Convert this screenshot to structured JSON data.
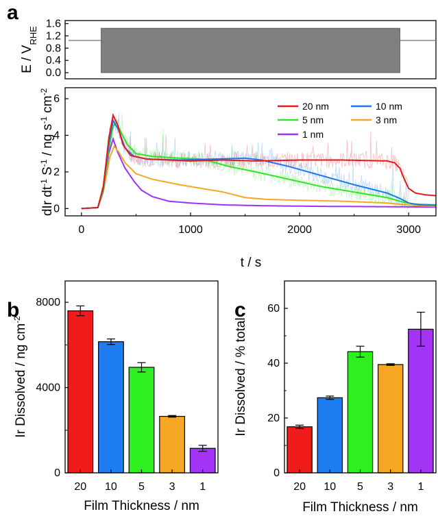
{
  "panels": {
    "a": "a",
    "b": "b",
    "c": "c"
  },
  "chart_data": [
    {
      "id": "a-top",
      "type": "area",
      "ylabel": "E / V",
      "ylabel_sub": "RHE",
      "ylim": [
        -0.2,
        1.7
      ],
      "yticks": [
        0.0,
        0.4,
        0.8,
        1.2,
        1.6
      ],
      "ytick_labels": [
        "0.0",
        "0.4",
        "0.8",
        "1.2",
        "1.6"
      ],
      "xlim": [
        -150,
        3250
      ],
      "baseline_potential": 1.05,
      "cycling_window": {
        "start": 180,
        "end": 2920,
        "low": 0.0,
        "high": 1.45
      },
      "colors": {
        "trace": "#7f7f7f",
        "block": "#7f7f7f"
      }
    },
    {
      "id": "a-bottom",
      "type": "line",
      "xlabel": "t / s",
      "ylabel": "dIr dt⁻¹ S⁻¹ / ng s⁻¹ cm⁻²",
      "xlim": [
        -150,
        3250
      ],
      "ylim": [
        -0.4,
        6.6
      ],
      "xticks": [
        0,
        1000,
        2000,
        3000
      ],
      "xtick_labels": [
        "0",
        "1000",
        "2000",
        "3000"
      ],
      "yticks": [
        0,
        2,
        4,
        6
      ],
      "ytick_labels": [
        "0",
        "2",
        "4",
        "6"
      ],
      "legend": "top-right",
      "series": [
        {
          "name": "20 nm",
          "color": "#e31a1c",
          "noise": true,
          "points": [
            [
              0,
              0
            ],
            [
              150,
              0.05
            ],
            [
              200,
              1.2
            ],
            [
              250,
              3.8
            ],
            [
              290,
              5.1
            ],
            [
              330,
              4.6
            ],
            [
              380,
              3.5
            ],
            [
              450,
              2.9
            ],
            [
              600,
              2.7
            ],
            [
              800,
              2.65
            ],
            [
              1000,
              2.6
            ],
            [
              1300,
              2.65
            ],
            [
              1600,
              2.6
            ],
            [
              2000,
              2.65
            ],
            [
              2400,
              2.65
            ],
            [
              2800,
              2.6
            ],
            [
              2870,
              2.5
            ],
            [
              2920,
              2.2
            ],
            [
              2960,
              1.6
            ],
            [
              3000,
              1.1
            ],
            [
              3060,
              0.85
            ],
            [
              3150,
              0.75
            ],
            [
              3250,
              0.7
            ]
          ]
        },
        {
          "name": "10 nm",
          "color": "#1f78e8",
          "noise": true,
          "points": [
            [
              0,
              0
            ],
            [
              150,
              0.05
            ],
            [
              200,
              1.1
            ],
            [
              250,
              3.5
            ],
            [
              290,
              4.8
            ],
            [
              340,
              4.3
            ],
            [
              400,
              3.3
            ],
            [
              480,
              2.85
            ],
            [
              600,
              2.7
            ],
            [
              900,
              2.65
            ],
            [
              1200,
              2.7
            ],
            [
              1500,
              2.75
            ],
            [
              1650,
              2.65
            ],
            [
              1900,
              2.3
            ],
            [
              2200,
              1.8
            ],
            [
              2500,
              1.3
            ],
            [
              2800,
              0.85
            ],
            [
              2920,
              0.55
            ],
            [
              3000,
              0.3
            ],
            [
              3100,
              0.2
            ],
            [
              3250,
              0.18
            ]
          ]
        },
        {
          "name": "5 nm",
          "color": "#2ee620",
          "noise": true,
          "points": [
            [
              0,
              0
            ],
            [
              150,
              0.05
            ],
            [
              200,
              1.0
            ],
            [
              250,
              3.2
            ],
            [
              290,
              4.5
            ],
            [
              320,
              4.7
            ],
            [
              360,
              4.2
            ],
            [
              420,
              3.5
            ],
            [
              500,
              3.0
            ],
            [
              650,
              2.85
            ],
            [
              900,
              2.75
            ],
            [
              1100,
              2.7
            ],
            [
              1200,
              2.55
            ],
            [
              1350,
              2.3
            ],
            [
              1600,
              2.0
            ],
            [
              1900,
              1.6
            ],
            [
              2200,
              1.2
            ],
            [
              2500,
              0.9
            ],
            [
              2800,
              0.6
            ],
            [
              2950,
              0.35
            ],
            [
              3050,
              0.25
            ],
            [
              3250,
              0.2
            ]
          ]
        },
        {
          "name": "3 nm",
          "color": "#f5a623",
          "noise": false,
          "points": [
            [
              0,
              0
            ],
            [
              150,
              0.05
            ],
            [
              200,
              0.9
            ],
            [
              260,
              2.8
            ],
            [
              300,
              3.4
            ],
            [
              340,
              3.1
            ],
            [
              400,
              2.5
            ],
            [
              500,
              1.9
            ],
            [
              650,
              1.6
            ],
            [
              900,
              1.3
            ],
            [
              1100,
              1.1
            ],
            [
              1300,
              0.9
            ],
            [
              1500,
              0.6
            ],
            [
              1700,
              0.5
            ],
            [
              2000,
              0.45
            ],
            [
              2400,
              0.4
            ],
            [
              2800,
              0.3
            ],
            [
              2950,
              0.22
            ],
            [
              3100,
              0.15
            ],
            [
              3250,
              0.12
            ]
          ]
        },
        {
          "name": "1 nm",
          "color": "#9b30ff",
          "noise": false,
          "points": [
            [
              0,
              0
            ],
            [
              150,
              0.05
            ],
            [
              200,
              0.9
            ],
            [
              250,
              3.0
            ],
            [
              290,
              3.8
            ],
            [
              330,
              3.1
            ],
            [
              400,
              2.2
            ],
            [
              480,
              1.5
            ],
            [
              550,
              1.0
            ],
            [
              650,
              0.65
            ],
            [
              800,
              0.4
            ],
            [
              1000,
              0.3
            ],
            [
              1300,
              0.2
            ],
            [
              1700,
              0.15
            ],
            [
              2200,
              0.12
            ],
            [
              2800,
              0.1
            ],
            [
              3250,
              0.08
            ]
          ]
        }
      ]
    },
    {
      "id": "b",
      "type": "bar",
      "xlabel": "Film Thickness / nm",
      "ylabel": "Ir Dissolved / ng cm⁻²",
      "categories": [
        "20",
        "10",
        "5",
        "3",
        "1"
      ],
      "values": [
        7600,
        6150,
        4950,
        2650,
        1150
      ],
      "errors": [
        230,
        130,
        220,
        40,
        140
      ],
      "colors": [
        "#f21b1b",
        "#1e7df0",
        "#2ef01e",
        "#f5a623",
        "#a333f5"
      ],
      "ylim": [
        0,
        9000
      ],
      "yticks": [
        0,
        4000,
        8000
      ],
      "ytick_labels": [
        "0",
        "4000",
        "8000"
      ]
    },
    {
      "id": "c",
      "type": "bar",
      "xlabel": "Film Thickness / nm",
      "ylabel": "Ir Dissolved / % total",
      "categories": [
        "20",
        "10",
        "5",
        "3",
        "1"
      ],
      "values": [
        16.8,
        27.4,
        44.2,
        39.5,
        52.4
      ],
      "errors": [
        0.6,
        0.6,
        2.0,
        0.3,
        6.2
      ],
      "colors": [
        "#f21b1b",
        "#1e7df0",
        "#2ef01e",
        "#f5a623",
        "#a333f5"
      ],
      "ylim": [
        0,
        70
      ],
      "yticks": [
        0,
        20,
        40,
        60
      ],
      "ytick_labels": [
        "0",
        "20",
        "40",
        "60"
      ]
    }
  ]
}
